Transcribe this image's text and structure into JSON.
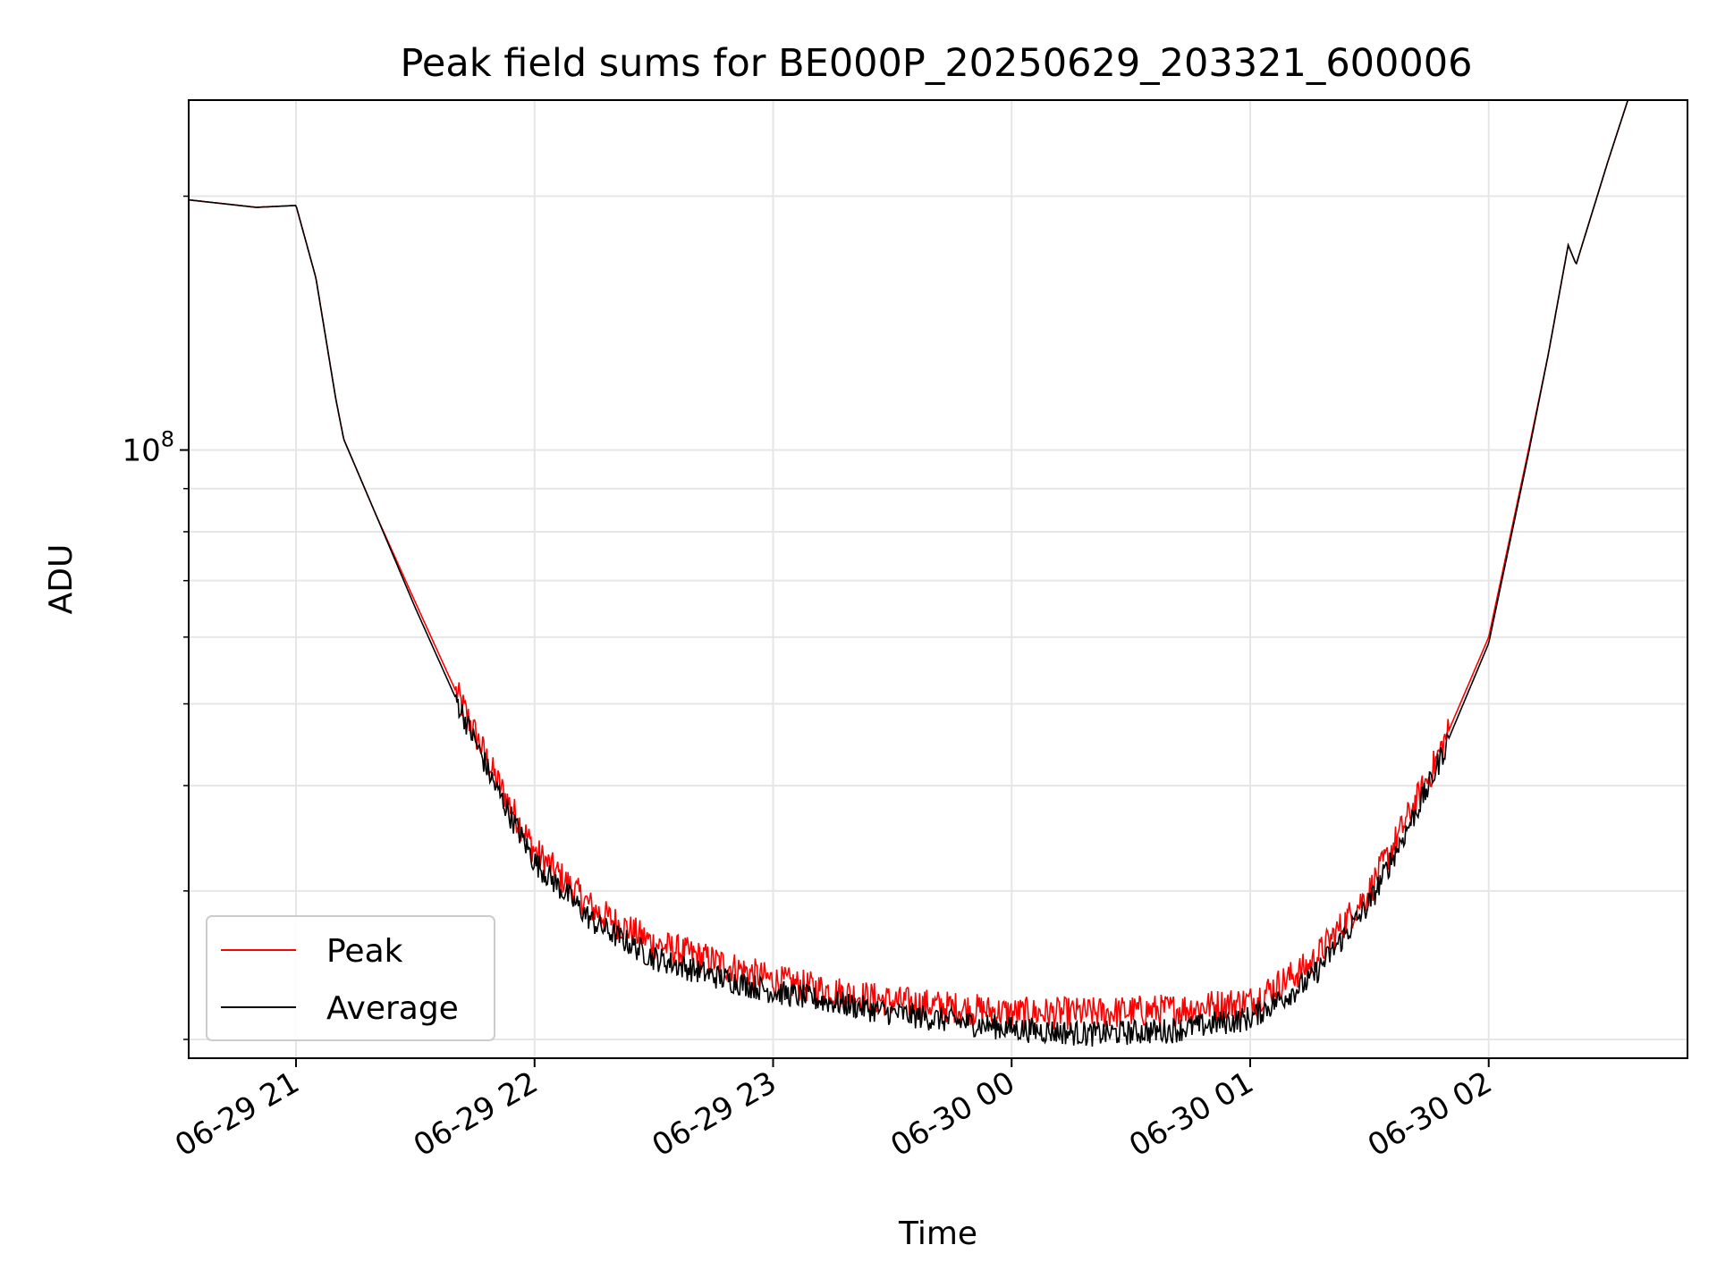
{
  "chart_data": {
    "type": "line",
    "title": "Peak field sums for BE000P_20250629_203321_600006",
    "xlabel": "Time",
    "ylabel": "ADU",
    "yscale": "log",
    "grid": true,
    "legend_position": "lower-left",
    "xlim": [
      "2025-06-29 20:33",
      "2025-06-30 02:50"
    ],
    "ylim": [
      19000000,
      260000000
    ],
    "x_ticks": [
      {
        "value": "2025-06-29 21:00",
        "label": "06-29 21"
      },
      {
        "value": "2025-06-29 22:00",
        "label": "06-29 22"
      },
      {
        "value": "2025-06-29 23:00",
        "label": "06-29 23"
      },
      {
        "value": "2025-06-30 00:00",
        "label": "06-30 00"
      },
      {
        "value": "2025-06-30 01:00",
        "label": "06-30 01"
      },
      {
        "value": "2025-06-30 02:00",
        "label": "06-30 02"
      }
    ],
    "y_ticks_major": [
      {
        "value": 100000000,
        "base": "10",
        "exponent": "8"
      }
    ],
    "y_ticks_minor": [
      20000000,
      30000000,
      40000000,
      50000000,
      60000000,
      70000000,
      80000000,
      90000000,
      200000000
    ],
    "series": [
      {
        "name": "Peak",
        "color": "#ff0000",
        "x": [
          "2025-06-29 20:33",
          "2025-06-29 20:50",
          "2025-06-29 21:00",
          "2025-06-29 21:05",
          "2025-06-29 21:10",
          "2025-06-29 21:12",
          "2025-06-29 21:20",
          "2025-06-29 21:30",
          "2025-06-29 21:40",
          "2025-06-29 21:50",
          "2025-06-29 22:00",
          "2025-06-29 22:15",
          "2025-06-29 22:30",
          "2025-06-29 22:45",
          "2025-06-29 23:00",
          "2025-06-29 23:30",
          "2025-06-30 00:00",
          "2025-06-30 00:20",
          "2025-06-30 00:40",
          "2025-06-30 01:00",
          "2025-06-30 01:15",
          "2025-06-30 01:30",
          "2025-06-30 01:45",
          "2025-06-30 02:00",
          "2025-06-30 02:10",
          "2025-06-30 02:15",
          "2025-06-30 02:20",
          "2025-06-30 02:22",
          "2025-06-30 02:30",
          "2025-06-30 02:35"
        ],
        "y": [
          198000000,
          194000000,
          195000000,
          160000000,
          115000000,
          103000000,
          84000000,
          66000000,
          52000000,
          41000000,
          33500000,
          28500000,
          26000000,
          24800000,
          23500000,
          22200000,
          21500000,
          21500000,
          21700000,
          22200000,
          24500000,
          30000000,
          41000000,
          60000000,
          100000000,
          130000000,
          175000000,
          166000000,
          220000000,
          260000000
        ]
      },
      {
        "name": "Average",
        "color": "#000000",
        "x": [
          "2025-06-29 20:33",
          "2025-06-29 20:50",
          "2025-06-29 21:00",
          "2025-06-29 21:05",
          "2025-06-29 21:10",
          "2025-06-29 21:12",
          "2025-06-29 21:20",
          "2025-06-29 21:30",
          "2025-06-29 21:40",
          "2025-06-29 21:50",
          "2025-06-29 22:00",
          "2025-06-29 22:15",
          "2025-06-29 22:30",
          "2025-06-29 22:45",
          "2025-06-29 23:00",
          "2025-06-29 23:30",
          "2025-06-30 00:00",
          "2025-06-30 00:20",
          "2025-06-30 00:40",
          "2025-06-30 01:00",
          "2025-06-30 01:15",
          "2025-06-30 01:30",
          "2025-06-30 01:45",
          "2025-06-30 02:00",
          "2025-06-30 02:10",
          "2025-06-30 02:15",
          "2025-06-30 02:20",
          "2025-06-30 02:22",
          "2025-06-30 02:30",
          "2025-06-30 02:35"
        ],
        "y": [
          198000000,
          194000000,
          195000000,
          160000000,
          115000000,
          103000000,
          84000000,
          65000000,
          51000000,
          40000000,
          32500000,
          27500000,
          25000000,
          23800000,
          22800000,
          21500000,
          20600000,
          20300000,
          20500000,
          21200000,
          23500000,
          29000000,
          40000000,
          59000000,
          99000000,
          130000000,
          175000000,
          166000000,
          220000000,
          260000000
        ]
      }
    ]
  }
}
